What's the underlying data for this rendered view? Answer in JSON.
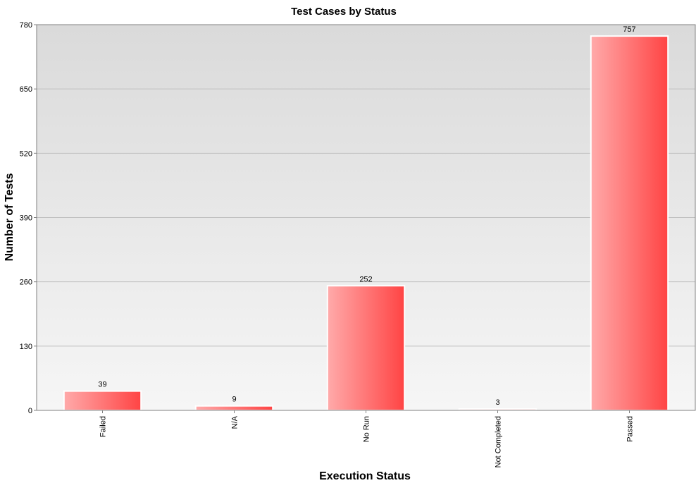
{
  "chart_data": {
    "type": "bar",
    "title": "Test Cases by Status",
    "xlabel": "Execution Status",
    "ylabel": "Number of Tests",
    "categories": [
      "Failed",
      "N/A",
      "No Run",
      "Not Completed",
      "Passed"
    ],
    "values": [
      39,
      9,
      252,
      3,
      757
    ],
    "ylim": [
      0,
      780
    ],
    "yticks": [
      0,
      130,
      260,
      390,
      520,
      650,
      780
    ],
    "grid": true,
    "legend": "none",
    "colors": {
      "bar_light": "#ffaaaa",
      "bar_dark": "#ff4444",
      "bar_border": "#ffffff",
      "plot_bg_top": "#dadada",
      "plot_bg_bottom": "#f6f6f6",
      "gridline": "#c0c0c0",
      "axis": "#808080"
    }
  }
}
